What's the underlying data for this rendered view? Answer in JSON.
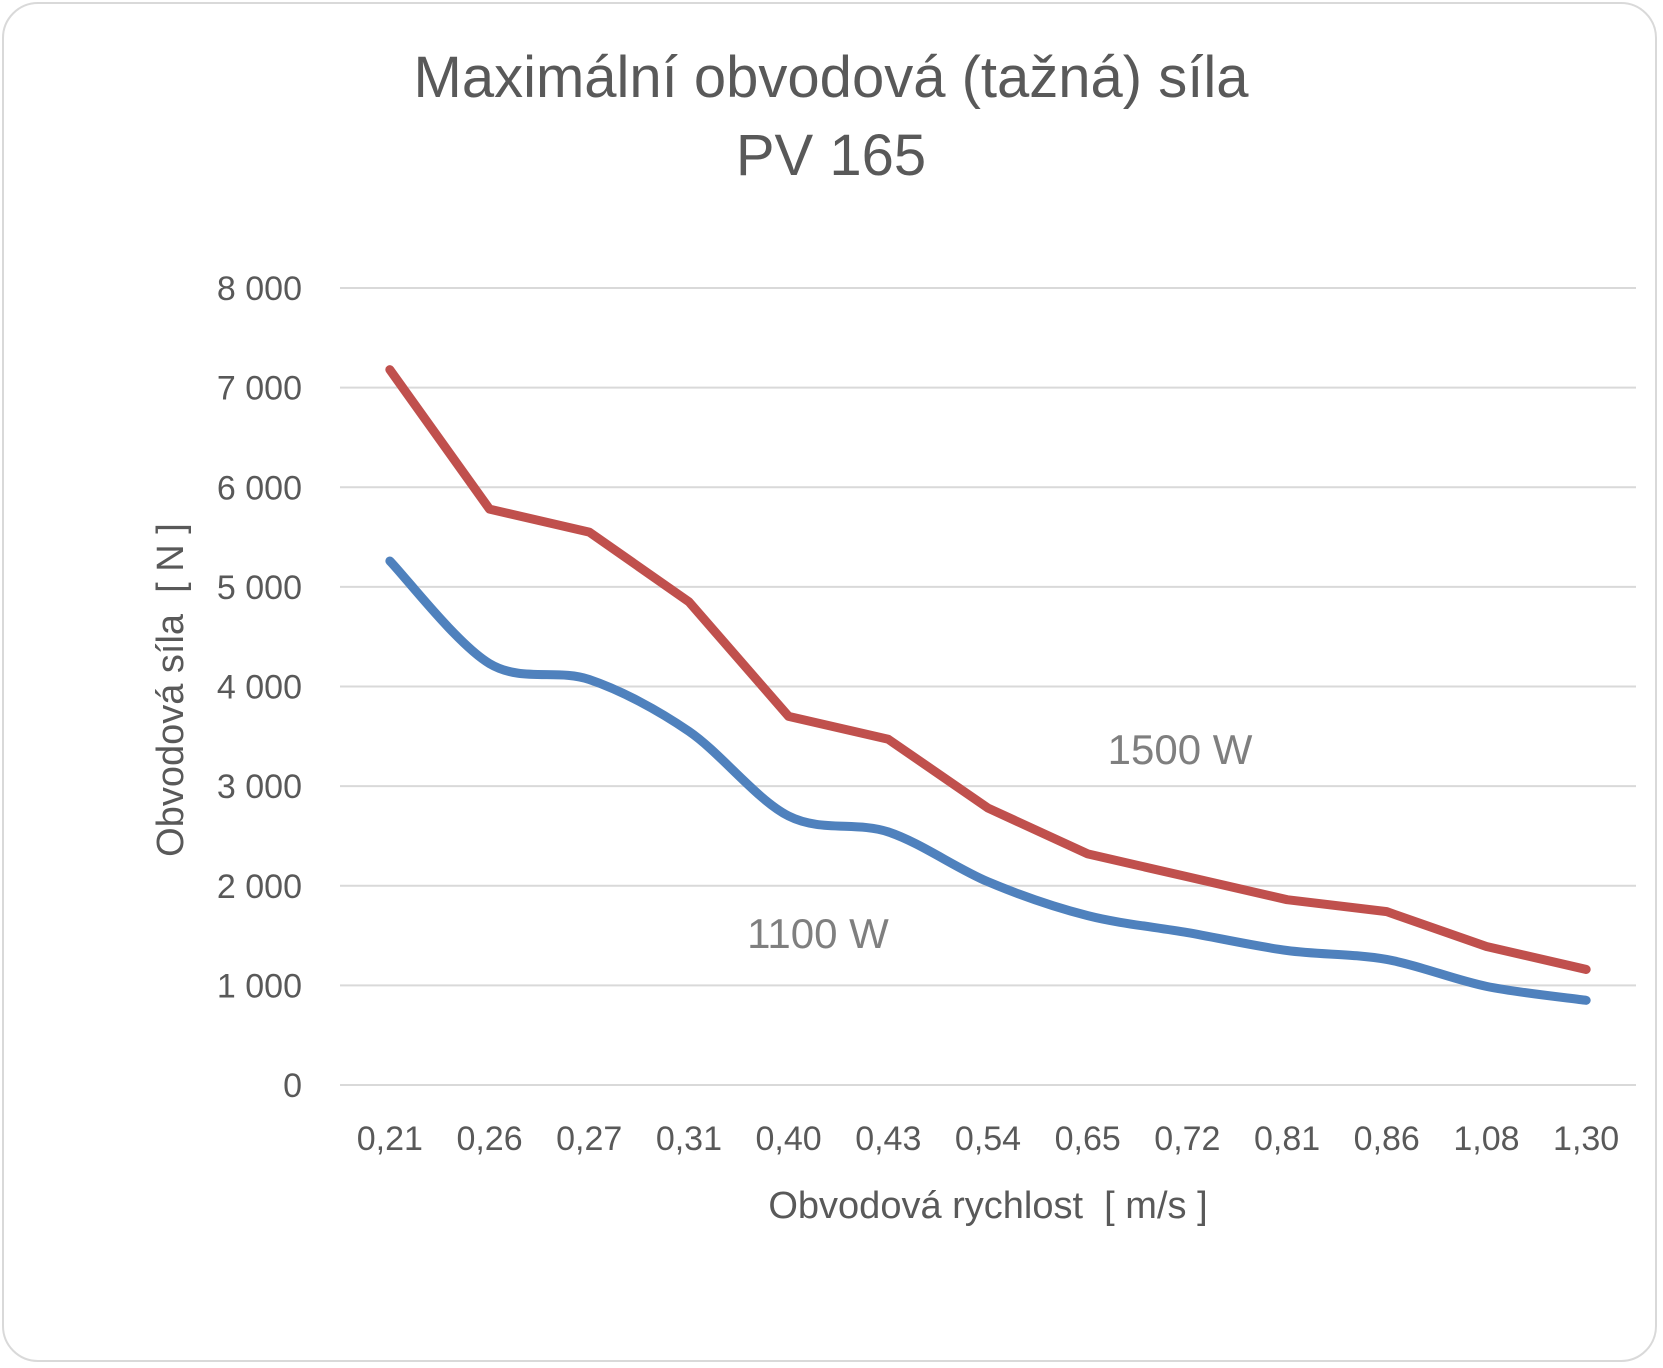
{
  "chart_data": {
    "type": "line",
    "title": [
      "Maximální obvodová (tažná) síla",
      "PV 165"
    ],
    "xlabel": "Obvodová rychlost  [ m/s ]",
    "ylabel": "Obvodová síla  [ N ]",
    "categories": [
      "0,21",
      "0,26",
      "0,27",
      "0,31",
      "0,40",
      "0,43",
      "0,54",
      "0,65",
      "0,72",
      "0,81",
      "0,86",
      "1,08",
      "1,30"
    ],
    "ylim": [
      0,
      8000
    ],
    "yticks": [
      0,
      1000,
      2000,
      3000,
      4000,
      5000,
      6000,
      7000,
      8000
    ],
    "ytick_labels": [
      "0",
      "1 000",
      "2 000",
      "3 000",
      "4 000",
      "5 000",
      "6 000",
      "7 000",
      "8 000"
    ],
    "grid": true,
    "series": [
      {
        "name": "1500 W",
        "color": "#c0504d",
        "smooth": false,
        "values": [
          7180,
          5780,
          5550,
          4850,
          3700,
          3470,
          2780,
          2320,
          2090,
          1860,
          1740,
          1390,
          1160
        ]
      },
      {
        "name": "1100 W",
        "color": "#4f81bd",
        "smooth": true,
        "values": [
          5260,
          4230,
          4070,
          3550,
          2700,
          2540,
          2040,
          1700,
          1530,
          1350,
          1260,
          990,
          850
        ]
      }
    ]
  }
}
